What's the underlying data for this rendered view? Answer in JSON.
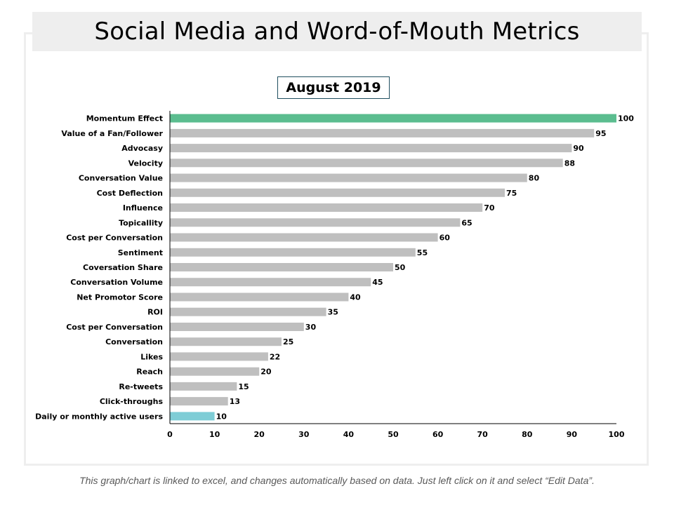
{
  "title": "Social Media and Word-of-Mouth Metrics",
  "footer": "This graph/chart is linked to excel, and changes automatically based on data. Just left click on it and select “Edit Data”.",
  "colors": {
    "highlight_top": "#5bbd8f",
    "highlight_bottom": "#7ecdd6",
    "bar_default": "#bfbfbf",
    "axis": "#000000",
    "title_band": "#eeeeee"
  },
  "chart_data": {
    "type": "bar",
    "orientation": "horizontal",
    "title": "August 2019",
    "categories": [
      "Momentum Effect",
      "Value of a Fan/Follower",
      "Advocasy",
      "Velocity",
      "Conversation Value",
      "Cost Deflection",
      "Influence",
      "Topicallity",
      "Cost per Conversation",
      "Sentiment",
      "Coversation Share",
      "Conversation Volume",
      "Net Promotor Score",
      "ROI",
      "Cost per Conversation",
      "Conversation",
      "Likes",
      "Reach",
      "Re-tweets",
      "Click-throughs",
      "Daily or monthly active users"
    ],
    "values": [
      100,
      95,
      90,
      88,
      80,
      75,
      70,
      65,
      60,
      55,
      50,
      45,
      40,
      35,
      30,
      25,
      22,
      20,
      15,
      13,
      10
    ],
    "xlim": [
      0,
      100
    ],
    "xticks": [
      0,
      10,
      20,
      30,
      40,
      50,
      60,
      70,
      80,
      90,
      100
    ],
    "xlabel": "",
    "ylabel": "",
    "grid": false,
    "legend": "none"
  }
}
